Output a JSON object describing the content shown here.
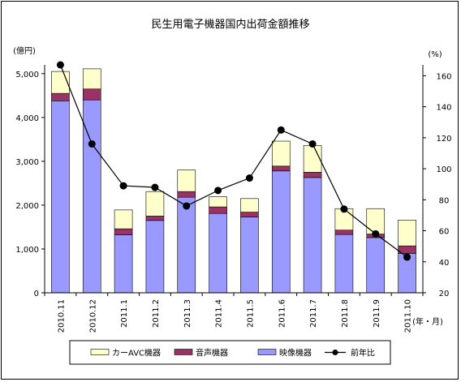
{
  "chart_data": {
    "type": "bar",
    "title": "民生用電子機器国内出荷金額推移",
    "left_axis_unit": "(億円)",
    "right_axis_unit": "(%)",
    "x_unit": "(年・月)",
    "categories": [
      "2010.11",
      "2010.12",
      "2011.1",
      "2011.2",
      "2011.3",
      "2011.4",
      "2011.5",
      "2011.6",
      "2011.7",
      "2011.8",
      "2011.9",
      "2011.10"
    ],
    "left_ylim": [
      0,
      5000
    ],
    "left_ticks": [
      0,
      1000,
      2000,
      3000,
      4000,
      5000
    ],
    "left_tick_labels": [
      "0",
      "1,000",
      "2,000",
      "3,000",
      "4,000",
      "5,000"
    ],
    "right_ylim": [
      20,
      167
    ],
    "right_ticks": [
      20,
      40,
      60,
      80,
      100,
      120,
      140,
      160
    ],
    "right_tick_labels": [
      "20",
      "40",
      "60",
      "80",
      "100",
      "120",
      "140",
      "160"
    ],
    "stacked": true,
    "series": [
      {
        "name": "映像機器",
        "kind": "bar",
        "color": "#9999ff",
        "values": [
          4380,
          4400,
          1320,
          1650,
          2180,
          1810,
          1730,
          2780,
          2630,
          1330,
          1260,
          900
        ]
      },
      {
        "name": "音声機器",
        "kind": "bar",
        "color": "#993366",
        "values": [
          170,
          250,
          140,
          100,
          130,
          150,
          110,
          110,
          120,
          100,
          80,
          170
        ]
      },
      {
        "name": "カーAVC機器",
        "kind": "bar",
        "color": "#ffffcc",
        "values": [
          500,
          460,
          430,
          560,
          490,
          230,
          310,
          570,
          610,
          490,
          580,
          590
        ]
      },
      {
        "name": "前年比",
        "kind": "line",
        "axis": "right",
        "color": "#000000",
        "values": [
          167,
          116,
          89,
          88,
          76,
          86,
          94,
          125,
          116,
          74,
          58,
          43
        ]
      }
    ],
    "legend_order": [
      "カーAVC機器",
      "音声機器",
      "映像機器",
      "前年比"
    ],
    "legend_position": "bottom",
    "grid": false
  }
}
